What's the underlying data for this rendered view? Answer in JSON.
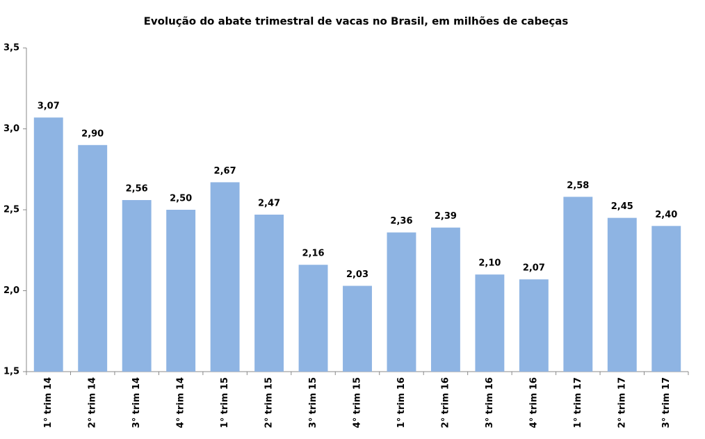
{
  "chart_data": {
    "type": "bar",
    "title": "Evolução do abate trimestral de vacas no Brasil, em milhões de cabeças",
    "categories": [
      "1° trim 14",
      "2° trim 14",
      "3° trim 14",
      "4° trim 14",
      "1° trim 15",
      "2° trim 15",
      "3° trim 15",
      "4° trim 15",
      "1° trim 16",
      "2° trim 16",
      "3° trim 16",
      "4° trim 16",
      "1° trim 17",
      "2° trim 17",
      "3° trim 17"
    ],
    "values": [
      3.07,
      2.9,
      2.56,
      2.5,
      2.67,
      2.47,
      2.16,
      2.03,
      2.36,
      2.39,
      2.1,
      2.07,
      2.58,
      2.45,
      2.4
    ],
    "value_labels": [
      "3,07",
      "2,90",
      "2,56",
      "2,50",
      "2,67",
      "2,47",
      "2,16",
      "2,03",
      "2,36",
      "2,39",
      "2,10",
      "2,07",
      "2,58",
      "2,45",
      "2,40"
    ],
    "color": "#8eb4e3",
    "ylim": [
      1.5,
      3.5
    ],
    "yticks": [
      {
        "value": 1.5,
        "label": "1,5"
      },
      {
        "value": 2.0,
        "label": "2,0"
      },
      {
        "value": 2.5,
        "label": "2,5"
      },
      {
        "value": 3.0,
        "label": "3,0"
      },
      {
        "value": 3.5,
        "label": "3,5"
      }
    ],
    "grid": false
  }
}
